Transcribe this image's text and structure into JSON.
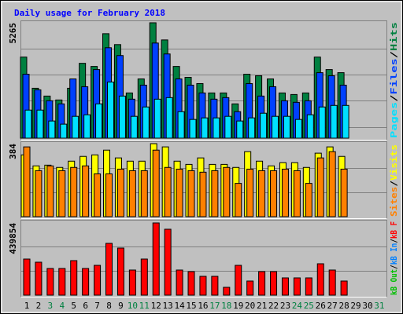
{
  "chart_data": [
    {
      "type": "bar",
      "title": "Daily usage for February 2018",
      "separator": "/",
      "ylim": [
        0,
        5265
      ],
      "yticks": [
        5265
      ],
      "series": [
        {
          "name": "Hits",
          "color": "#008040",
          "values": [
            3699,
            2277,
            1921,
            1743,
            2277,
            3415,
            3273,
            4767,
            4269,
            2063,
            2703,
            5265,
            4482,
            3273,
            2775,
            2490,
            2063,
            2063,
            1565,
            2917,
            2846,
            2703,
            2063,
            1992,
            2063,
            3699,
            3130,
            2988,
            null,
            null,
            null
          ]
        },
        {
          "name": "Files",
          "color": "#0040ff",
          "values": [
            2917,
            2205,
            1707,
            1565,
            2703,
            2348,
            3130,
            4126,
            3770,
            1779,
            2419,
            4340,
            3842,
            2703,
            2419,
            2063,
            1779,
            1850,
            1209,
            2490,
            1921,
            2348,
            1707,
            1636,
            1707,
            2988,
            2846,
            2419,
            null,
            null,
            null
          ]
        },
        {
          "name": "Pages",
          "color": "#00e0ff",
          "values": [
            1281,
            1281,
            783,
            640,
            996,
            1067,
            1565,
            2561,
            1921,
            996,
            1423,
            1779,
            1850,
            1209,
            854,
            925,
            925,
            996,
            783,
            925,
            1138,
            996,
            996,
            854,
            1067,
            1423,
            1494,
            1494,
            null,
            null,
            null
          ]
        }
      ]
    },
    {
      "type": "bar",
      "separator": "/",
      "ylim": [
        0,
        384
      ],
      "yticks": [
        384
      ],
      "series": [
        {
          "name": "Visits",
          "color": "#ffff00",
          "values": [
            325,
            267,
            271,
            259,
            292,
            317,
            325,
            350,
            309,
            292,
            292,
            384,
            367,
            292,
            275,
            309,
            275,
            275,
            259,
            342,
            292,
            267,
            284,
            284,
            259,
            334,
            367,
            317,
            null,
            null,
            null
          ]
        },
        {
          "name": "Sites",
          "color": "#ff8000",
          "values": [
            367,
            242,
            267,
            242,
            259,
            267,
            225,
            225,
            250,
            242,
            242,
            350,
            259,
            250,
            242,
            234,
            242,
            259,
            175,
            250,
            242,
            242,
            250,
            242,
            175,
            309,
            342,
            250,
            null,
            null,
            null
          ]
        }
      ]
    },
    {
      "type": "bar",
      "separator": "/",
      "ylim": [
        0,
        439854
      ],
      "yticks": [
        439854
      ],
      "categories": [
        "1",
        "2",
        "3",
        "4",
        "5",
        "6",
        "7",
        "8",
        "9",
        "10",
        "11",
        "12",
        "13",
        "14",
        "15",
        "16",
        "17",
        "18",
        "19",
        "20",
        "21",
        "22",
        "23",
        "24",
        "25",
        "26",
        "27",
        "28",
        "29",
        "30",
        "31"
      ],
      "category_colors": [
        "#000000",
        "#000000",
        "#008040",
        "#008040",
        "#000000",
        "#000000",
        "#000000",
        "#000000",
        "#000000",
        "#008040",
        "#008040",
        "#000000",
        "#000000",
        "#000000",
        "#000000",
        "#000000",
        "#008040",
        "#008040",
        "#000000",
        "#000000",
        "#000000",
        "#000000",
        "#000000",
        "#008040",
        "#008040",
        "#000000",
        "#000000",
        "#000000",
        "#000000",
        "#000000",
        "#008040"
      ],
      "series": [
        {
          "name": "kB F",
          "color": "#ff0000",
          "values": [
            219926,
            200802,
            162554,
            162554,
            210364,
            162554,
            181678,
            315546,
            286860,
            152992,
            219926,
            439854,
            401604,
            152992,
            143430,
            114744,
            114744,
            47810,
            181678,
            86058,
            143430,
            143430,
            105182,
            105182,
            105182,
            191240,
            152992,
            86058,
            null,
            null,
            null
          ]
        },
        {
          "name": "kB In",
          "color": "#0080ff",
          "values": [
            null,
            null,
            null,
            null,
            null,
            null,
            null,
            null,
            null,
            null,
            null,
            null,
            null,
            null,
            null,
            null,
            null,
            null,
            null,
            null,
            null,
            null,
            null,
            null,
            null,
            null,
            null,
            null,
            null,
            null,
            null
          ]
        },
        {
          "name": "kB Out",
          "color": "#00c000",
          "values": [
            null,
            null,
            null,
            null,
            null,
            null,
            null,
            null,
            null,
            null,
            null,
            null,
            null,
            null,
            null,
            null,
            null,
            null,
            null,
            null,
            null,
            null,
            null,
            null,
            null,
            null,
            null,
            null,
            null,
            null,
            null
          ]
        }
      ]
    }
  ]
}
